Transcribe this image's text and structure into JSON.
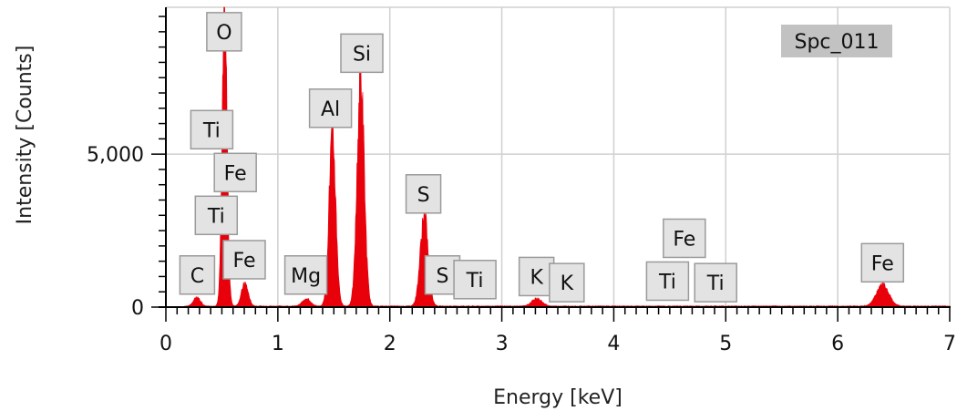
{
  "chart_data": {
    "type": "area",
    "xlabel": "Energy [keV]",
    "ylabel": "Intensity [Counts]",
    "xlim": [
      0,
      7
    ],
    "ylim": [
      0,
      9800
    ],
    "x_ticks": [
      0,
      1,
      2,
      3,
      4,
      5,
      6,
      7
    ],
    "x_tick_labels": [
      "0",
      "1",
      "2",
      "3",
      "4",
      "5",
      "6",
      "7"
    ],
    "y_ticks": [
      0,
      5000
    ],
    "y_tick_labels": [
      "0",
      "5,000"
    ],
    "grid": true,
    "color": "#e8000b",
    "spectrum_label": "Spc_011",
    "peaks": [
      {
        "element": "C",
        "energy": 0.277,
        "counts": 300,
        "width": 0.03
      },
      {
        "element": "O",
        "energy": 0.525,
        "counts": 9800,
        "width": 0.022
      },
      {
        "element": "Fe",
        "energy": 0.705,
        "counts": 750,
        "width": 0.03
      },
      {
        "element": "Mg",
        "energy": 1.254,
        "counts": 250,
        "width": 0.035
      },
      {
        "element": "Al",
        "energy": 1.487,
        "counts": 5700,
        "width": 0.03
      },
      {
        "element": "Si",
        "energy": 1.74,
        "counts": 7500,
        "width": 0.032
      },
      {
        "element": "S",
        "energy": 2.307,
        "counts": 3000,
        "width": 0.035
      },
      {
        "element": "K",
        "energy": 3.313,
        "counts": 250,
        "width": 0.045
      },
      {
        "element": "Fe",
        "energy": 6.4,
        "counts": 700,
        "width": 0.055
      }
    ],
    "labels": [
      {
        "text": "O",
        "energy": 0.52,
        "counts": 9000
      },
      {
        "text": "Ti",
        "energy": 0.41,
        "counts": 5800
      },
      {
        "text": "Fe",
        "energy": 0.62,
        "counts": 4400
      },
      {
        "text": "Ti",
        "energy": 0.45,
        "counts": 3000
      },
      {
        "text": "C",
        "energy": 0.28,
        "counts": 1050
      },
      {
        "text": "Fe",
        "energy": 0.7,
        "counts": 1550
      },
      {
        "text": "Mg",
        "energy": 1.25,
        "counts": 1050
      },
      {
        "text": "Al",
        "energy": 1.47,
        "counts": 6500
      },
      {
        "text": "Si",
        "energy": 1.75,
        "counts": 8300
      },
      {
        "text": "S",
        "energy": 2.3,
        "counts": 3700
      },
      {
        "text": "S",
        "energy": 2.47,
        "counts": 1050
      },
      {
        "text": "Ti",
        "energy": 2.76,
        "counts": 900
      },
      {
        "text": "K",
        "energy": 3.31,
        "counts": 1000
      },
      {
        "text": "K",
        "energy": 3.58,
        "counts": 800
      },
      {
        "text": "Fe",
        "energy": 4.63,
        "counts": 2250
      },
      {
        "text": "Ti",
        "energy": 4.48,
        "counts": 850
      },
      {
        "text": "Ti",
        "energy": 4.91,
        "counts": 800
      },
      {
        "text": "Fe",
        "energy": 6.4,
        "counts": 1450
      }
    ]
  }
}
